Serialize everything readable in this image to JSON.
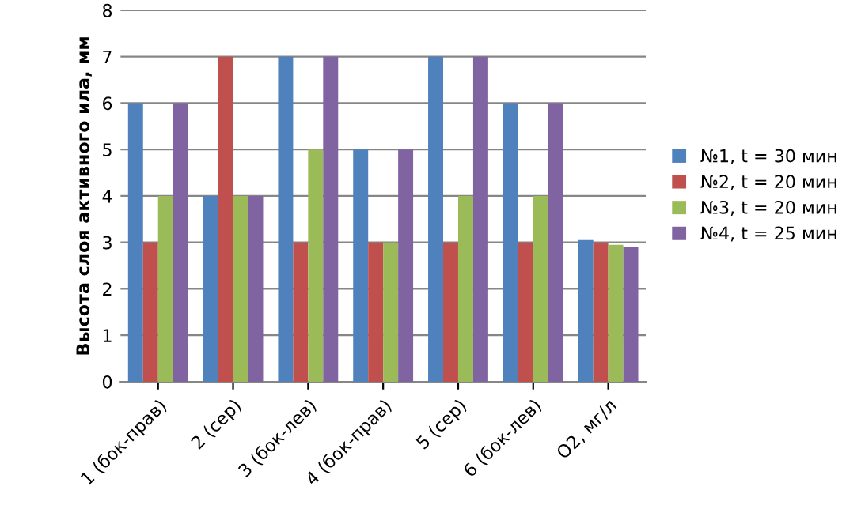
{
  "chart_data": {
    "type": "bar",
    "ylabel": "Высота слоя активного ила, мм",
    "categories": [
      "1 (бок-прав)",
      "2 (сер)",
      "3 (бок-лев)",
      "4 (бок-прав)",
      "5 (сер)",
      "6 (бок-лев)",
      "О2, мг/л"
    ],
    "series": [
      {
        "name": "№1, t = 30 мин",
        "color": "#4f81bd",
        "values": [
          6,
          4,
          7,
          5,
          7,
          6,
          3.05
        ]
      },
      {
        "name": "№2, t = 20 мин",
        "color": "#c0504d",
        "values": [
          3,
          7,
          3,
          3,
          3,
          3,
          3.0
        ]
      },
      {
        "name": "№3, t = 20 мин",
        "color": "#9bbb59",
        "values": [
          4,
          4,
          5,
          3,
          4,
          4,
          2.95
        ]
      },
      {
        "name": "№4, t = 25 мин",
        "color": "#8064a2",
        "values": [
          6,
          4,
          7,
          5,
          7,
          6,
          2.9
        ]
      }
    ],
    "ylim": [
      0,
      8
    ],
    "yticks": [
      0,
      1,
      2,
      3,
      4,
      5,
      6,
      7,
      8
    ],
    "grid": "y",
    "legend": "right"
  }
}
